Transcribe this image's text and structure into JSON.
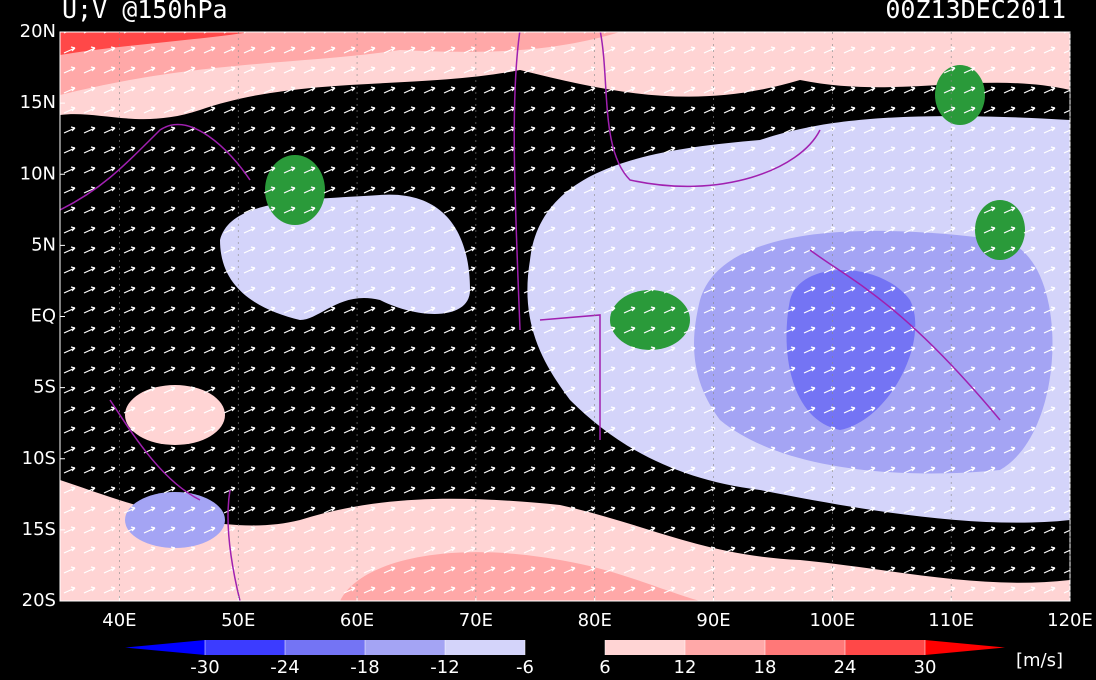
{
  "map": {
    "title": "U;V @150hPa",
    "time": "00Z13DEC2011",
    "xlim": [
      35,
      120
    ],
    "ylim": [
      -20,
      20
    ],
    "lat_ticks": [
      {
        "value": 20,
        "label": "20N"
      },
      {
        "value": 15,
        "label": "15N"
      },
      {
        "value": 10,
        "label": "10N"
      },
      {
        "value": 5,
        "label": "5N"
      },
      {
        "value": 0,
        "label": "EQ"
      },
      {
        "value": -5,
        "label": "5S"
      },
      {
        "value": -10,
        "label": "10S"
      },
      {
        "value": -15,
        "label": "15S"
      },
      {
        "value": -20,
        "label": "20S"
      }
    ],
    "lon_ticks": [
      {
        "value": 40,
        "label": "40E"
      },
      {
        "value": 50,
        "label": "50E"
      },
      {
        "value": 60,
        "label": "60E"
      },
      {
        "value": 70,
        "label": "70E"
      },
      {
        "value": 80,
        "label": "80E"
      },
      {
        "value": 90,
        "label": "90E"
      },
      {
        "value": 100,
        "label": "100E"
      },
      {
        "value": 110,
        "label": "110E"
      },
      {
        "value": 120,
        "label": "120E"
      }
    ],
    "colorbar": {
      "ticks": [
        -30,
        -24,
        -18,
        -12,
        -6,
        6,
        12,
        18,
        24,
        30
      ],
      "colors": [
        "#0000ff",
        "#3c3cff",
        "#7474f4",
        "#a4a4f4",
        "#d4d4fa",
        "#000000",
        "#ffd4d4",
        "#ffa8a8",
        "#ff7878",
        "#ff4848",
        "#ff0000"
      ],
      "unit": "[m/s]"
    }
  }
}
